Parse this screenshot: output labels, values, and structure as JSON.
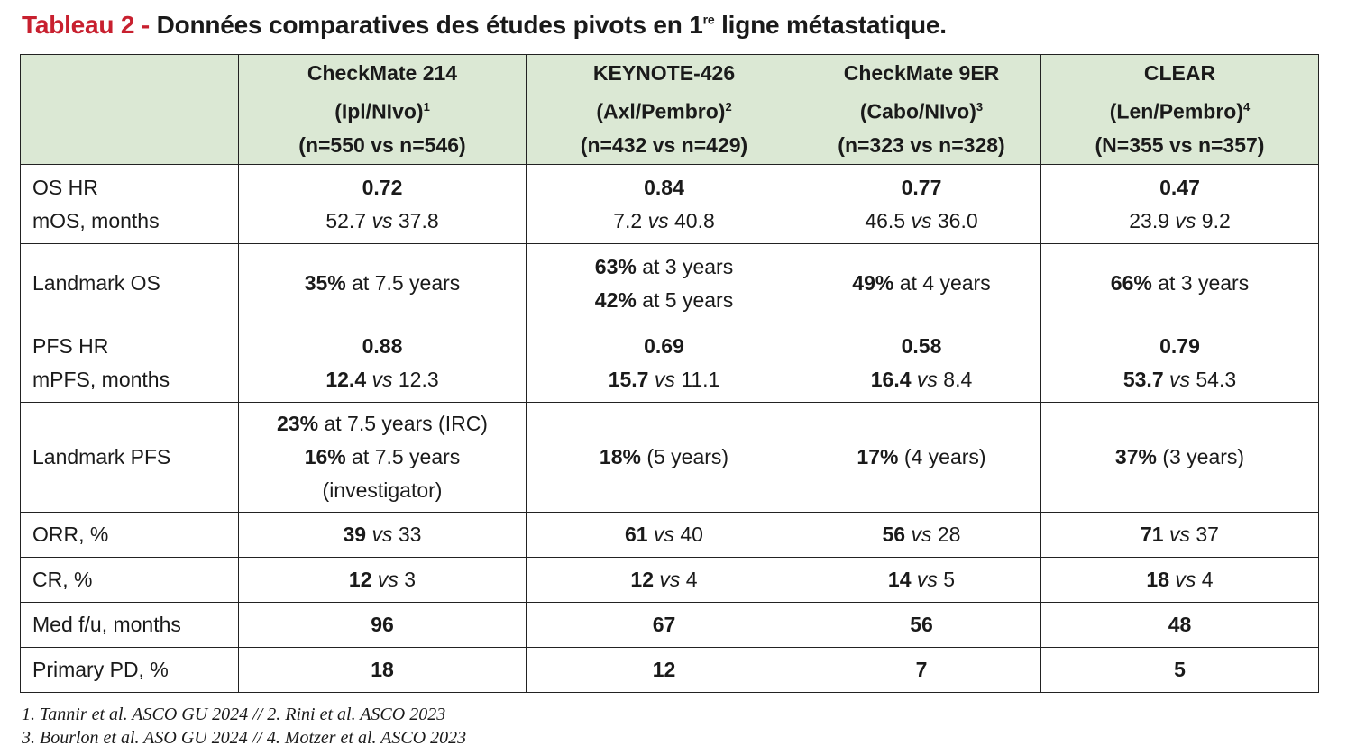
{
  "title": {
    "lead": "Tableau 2 - ",
    "rest": "Données comparatives des études pivots en 1",
    "sup": "re",
    "tail": " ligne métastatique."
  },
  "table": {
    "headers": [
      {
        "name": "CheckMate 214",
        "arms": "(Ipl/NIvo)",
        "ref": "1",
        "n": "(n=550 vs n=546)"
      },
      {
        "name": "KEYNOTE-426",
        "arms": "(Axl/Pembro)",
        "ref": "2",
        "n": "(n=432 vs n=429)"
      },
      {
        "name": "CheckMate 9ER",
        "arms": "(Cabo/NIvo)",
        "ref": "3",
        "n": "(n=323 vs n=328)"
      },
      {
        "name": "CLEAR",
        "arms": "(Len/Pembro)",
        "ref": "4",
        "n": "(N=355 vs n=357)"
      }
    ],
    "os": {
      "label1": "OS HR",
      "label2": "mOS, months",
      "cells": [
        {
          "hr": "0.72",
          "a": "52.7",
          "vs": "vs",
          "b": "37.8"
        },
        {
          "hr": "0.84",
          "a": "7.2",
          "vs": "vs",
          "b": "40.8"
        },
        {
          "hr": "0.77",
          "a": "46.5",
          "vs": "vs",
          "b": "36.0"
        },
        {
          "hr": "0.47",
          "a": "23.9",
          "vs": "vs",
          "b": "9.2"
        }
      ]
    },
    "landmark_os": {
      "label": "Landmark OS",
      "c1": {
        "pct": "35%",
        "txt": " at 7.5 years"
      },
      "c2a": {
        "pct": "63%",
        "txt": " at 3 years"
      },
      "c2b": {
        "pct": "42%",
        "txt": " at 5 years"
      },
      "c3": {
        "pct": "49%",
        "txt": " at 4 years"
      },
      "c4": {
        "pct": "66%",
        "txt": " at 3 years"
      }
    },
    "pfs": {
      "label1": "PFS HR",
      "label2": "mPFS, months",
      "cells": [
        {
          "hr": "0.88",
          "a": "12.4",
          "vs": "vs",
          "b": "12.3"
        },
        {
          "hr": "0.69",
          "a": "15.7",
          "vs": "vs",
          "b": "11.1"
        },
        {
          "hr": "0.58",
          "a": "16.4",
          "vs": "vs",
          "b": "8.4"
        },
        {
          "hr": "0.79",
          "a": "53.7",
          "vs": "vs",
          "b": "54.3"
        }
      ]
    },
    "landmark_pfs": {
      "label": "Landmark PFS",
      "c1a": {
        "pct": "23%",
        "txt": " at 7.5 years (IRC)"
      },
      "c1b": {
        "pct": "16%",
        "txt": " at 7.5 years"
      },
      "c1c": "(investigator)",
      "c2": {
        "pct": "18%",
        "txt": " (5 years)"
      },
      "c3": {
        "pct": "17%",
        "txt": " (4 years)"
      },
      "c4": {
        "pct": "37%",
        "txt": " (3 years)"
      }
    },
    "orr": {
      "label": "ORR, %",
      "cells": [
        {
          "a": "39",
          "vs": "vs",
          "b": "33"
        },
        {
          "a": "61",
          "vs": "vs",
          "b": "40"
        },
        {
          "a": "56",
          "vs": "vs",
          "b": "28"
        },
        {
          "a": "71",
          "vs": "vs",
          "b": "37"
        }
      ]
    },
    "cr": {
      "label": "CR, %",
      "cells": [
        {
          "a": "12",
          "vs": "vs",
          "b": "3"
        },
        {
          "a": "12",
          "vs": "vs",
          "b": "4"
        },
        {
          "a": "14",
          "vs": "vs",
          "b": "5"
        },
        {
          "a": "18",
          "vs": "vs",
          "b": "4"
        }
      ]
    },
    "fu": {
      "label": "Med f/u, months",
      "cells": [
        "96",
        "67",
        "56",
        "48"
      ]
    },
    "ppd": {
      "label": "Primary PD, %",
      "cells": [
        "18",
        "12",
        "7",
        "5"
      ]
    }
  },
  "footnotes": {
    "line1": "1. Tannir et al. ASCO GU 2024 // 2. Rini et al. ASCO 2023",
    "line2": "3. Bourlon et al. ASO GU 2024 // 4. Motzer et al. ASCO 2023"
  },
  "colors": {
    "title_accent": "#c8202f",
    "header_bg": "#dbe8d4"
  }
}
